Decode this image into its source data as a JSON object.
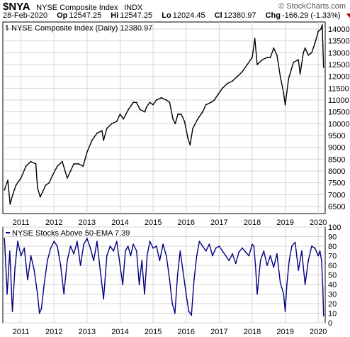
{
  "header": {
    "symbol": "$NYA",
    "name": "NYSE Composite Index",
    "exchange": "INDX",
    "watermark": "© StockCharts.com",
    "date": "28-Feb-2020",
    "open_label": "Op",
    "open": "12547.25",
    "high_label": "Hi",
    "high": "12547.25",
    "low_label": "Lo",
    "low": "12024.45",
    "close_label": "Cl",
    "close": "12380.97",
    "change_label": "Chg",
    "change": "-166.29 (-1.33%)"
  },
  "colors": {
    "price": "#000000",
    "breadth": "#000080",
    "grid": "#d4d4d4",
    "down_arrow": "#cc0000"
  },
  "chart_data": [
    {
      "type": "line",
      "legend": "NYSE Composite Index (Daily) 12380.97",
      "x": [
        2010.5,
        2010.6,
        2010.67,
        2010.75,
        2010.85,
        2011.0,
        2011.15,
        2011.3,
        2011.45,
        2011.5,
        2011.58,
        2011.65,
        2011.75,
        2011.85,
        2011.95,
        2012.1,
        2012.25,
        2012.4,
        2012.5,
        2012.6,
        2012.75,
        2012.88,
        2013.0,
        2013.15,
        2013.3,
        2013.45,
        2013.5,
        2013.6,
        2013.75,
        2013.9,
        2014.0,
        2014.1,
        2014.25,
        2014.4,
        2014.5,
        2014.6,
        2014.75,
        2014.8,
        2014.9,
        2015.0,
        2015.1,
        2015.25,
        2015.4,
        2015.5,
        2015.6,
        2015.67,
        2015.75,
        2015.85,
        2015.95,
        2016.05,
        2016.12,
        2016.2,
        2016.35,
        2016.5,
        2016.6,
        2016.75,
        2016.85,
        2016.95,
        2017.1,
        2017.25,
        2017.4,
        2017.55,
        2017.7,
        2017.85,
        2018.0,
        2018.08,
        2018.15,
        2018.3,
        2018.45,
        2018.55,
        2018.65,
        2018.75,
        2018.85,
        2018.95,
        2019.0,
        2019.1,
        2019.25,
        2019.4,
        2019.45,
        2019.55,
        2019.6,
        2019.7,
        2019.8,
        2019.9,
        2020.0,
        2020.08,
        2020.12,
        2020.14,
        2020.16
      ],
      "y": [
        7200,
        7600,
        6600,
        7000,
        7400,
        7700,
        8200,
        8400,
        8300,
        7300,
        6900,
        7100,
        7400,
        7500,
        7800,
        8200,
        8400,
        7700,
        8000,
        8300,
        8300,
        8200,
        8800,
        9300,
        9600,
        9700,
        9300,
        9800,
        10000,
        10100,
        10400,
        10200,
        10600,
        10900,
        10900,
        10600,
        10500,
        10700,
        10900,
        10800,
        11000,
        11100,
        11000,
        10900,
        10200,
        10000,
        10400,
        10400,
        10100,
        9400,
        9100,
        9800,
        10200,
        10500,
        10800,
        10900,
        11000,
        11200,
        11500,
        11700,
        11800,
        12000,
        12200,
        12500,
        12800,
        13600,
        12500,
        12700,
        12800,
        12800,
        13200,
        12900,
        12000,
        11300,
        10800,
        11900,
        12600,
        12700,
        12100,
        13000,
        13200,
        12900,
        13000,
        13400,
        13900,
        14000,
        14180,
        13300,
        12380
      ],
      "xlim": [
        2010.45,
        2020.21
      ],
      "ylim": [
        6200,
        14300
      ],
      "yticks": [
        6500,
        7000,
        7500,
        8000,
        8500,
        9000,
        9500,
        10000,
        10500,
        11000,
        11500,
        12000,
        12500,
        13000,
        13500,
        14000
      ],
      "xticks": [
        2011,
        2012,
        2013,
        2014,
        2015,
        2016,
        2017,
        2018,
        2019,
        2020
      ]
    },
    {
      "type": "line",
      "legend": "NYSE Stocks Above 50-EMA 7.39",
      "x": [
        2010.5,
        2010.58,
        2010.66,
        2010.74,
        2010.82,
        2010.9,
        2011.0,
        2011.1,
        2011.2,
        2011.3,
        2011.4,
        2011.5,
        2011.56,
        2011.62,
        2011.7,
        2011.8,
        2011.9,
        2012.0,
        2012.1,
        2012.2,
        2012.3,
        2012.4,
        2012.5,
        2012.6,
        2012.7,
        2012.8,
        2012.9,
        2013.0,
        2013.1,
        2013.2,
        2013.3,
        2013.4,
        2013.5,
        2013.6,
        2013.7,
        2013.8,
        2013.9,
        2014.0,
        2014.08,
        2014.16,
        2014.24,
        2014.32,
        2014.4,
        2014.5,
        2014.58,
        2014.66,
        2014.74,
        2014.82,
        2014.9,
        2015.0,
        2015.1,
        2015.2,
        2015.3,
        2015.4,
        2015.5,
        2015.58,
        2015.66,
        2015.74,
        2015.82,
        2015.9,
        2016.0,
        2016.08,
        2016.16,
        2016.24,
        2016.32,
        2016.4,
        2016.5,
        2016.6,
        2016.7,
        2016.8,
        2016.9,
        2017.0,
        2017.1,
        2017.2,
        2017.3,
        2017.4,
        2017.5,
        2017.6,
        2017.7,
        2017.8,
        2017.9,
        2018.0,
        2018.05,
        2018.1,
        2018.15,
        2018.25,
        2018.35,
        2018.45,
        2018.55,
        2018.65,
        2018.75,
        2018.85,
        2018.95,
        2019.0,
        2019.05,
        2019.12,
        2019.2,
        2019.3,
        2019.4,
        2019.5,
        2019.6,
        2019.7,
        2019.8,
        2019.9,
        2020.0,
        2020.05,
        2020.1,
        2020.14,
        2020.16
      ],
      "y": [
        88,
        30,
        75,
        12,
        58,
        85,
        70,
        78,
        45,
        70,
        55,
        30,
        10,
        15,
        40,
        65,
        78,
        85,
        80,
        60,
        30,
        65,
        80,
        72,
        85,
        60,
        82,
        88,
        78,
        65,
        85,
        55,
        25,
        70,
        80,
        75,
        85,
        60,
        40,
        75,
        80,
        70,
        82,
        75,
        40,
        65,
        30,
        70,
        85,
        78,
        80,
        65,
        82,
        70,
        45,
        20,
        10,
        50,
        75,
        55,
        30,
        12,
        8,
        45,
        70,
        85,
        80,
        75,
        82,
        70,
        78,
        80,
        75,
        70,
        65,
        72,
        62,
        74,
        78,
        74,
        70,
        82,
        80,
        60,
        30,
        65,
        75,
        60,
        70,
        58,
        72,
        42,
        30,
        12,
        40,
        65,
        80,
        84,
        55,
        75,
        40,
        65,
        80,
        78,
        70,
        75,
        65,
        35,
        7.39
      ],
      "xlim": [
        2010.45,
        2020.21
      ],
      "ylim": [
        0,
        100
      ],
      "yticks": [
        0,
        10,
        20,
        30,
        40,
        50,
        60,
        70,
        80,
        90,
        100
      ],
      "xticks": [
        2011,
        2012,
        2013,
        2014,
        2015,
        2016,
        2017,
        2018,
        2019,
        2020
      ]
    }
  ]
}
